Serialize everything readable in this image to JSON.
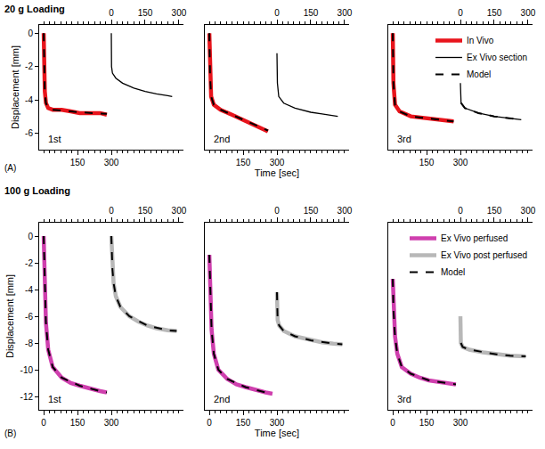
{
  "chart_data": [
    {
      "type": "line",
      "title": "20 g Loading",
      "label": "(A)",
      "xlabel": "Time [sec]",
      "ylabel": "Displacement [mm]",
      "xlim": [
        -20,
        620
      ],
      "xticks": [
        150,
        300
      ],
      "x2lim": [
        -320,
        320
      ],
      "x2ticks": [
        0,
        150,
        300
      ],
      "ylim": [
        -7,
        0.5
      ],
      "yticks": [
        0,
        -2,
        -4,
        -6
      ],
      "grid": false,
      "legend": "top right",
      "panels": [
        {
          "label": "1st",
          "series": [
            {
              "name": "In Vivo",
              "color": "#e8141c",
              "line_style": "thick",
              "axis": "x",
              "x": [
                0,
                2,
                5,
                10,
                20,
                40,
                80,
                120,
                160,
                200,
                250,
                280
              ],
              "y": [
                0,
                -2,
                -3.5,
                -4.2,
                -4.5,
                -4.6,
                -4.6,
                -4.7,
                -4.8,
                -4.8,
                -4.8,
                -4.9
              ]
            },
            {
              "name": "Ex Vivo section",
              "color": "#000000",
              "line_style": "thin",
              "axis": "x2",
              "x": [
                0,
                1,
                5,
                20,
                50,
                100,
                150,
                200,
                250,
                270
              ],
              "y": [
                0,
                -2,
                -2.4,
                -2.7,
                -3,
                -3.3,
                -3.5,
                -3.65,
                -3.75,
                -3.8
              ]
            },
            {
              "name": "Model",
              "color": "#000000",
              "line_style": "dashed",
              "axis": "x",
              "x": [
                0,
                2,
                5,
                10,
                20,
                40,
                80,
                160,
                280
              ],
              "y": [
                0,
                -2,
                -3.5,
                -4.2,
                -4.5,
                -4.6,
                -4.65,
                -4.75,
                -4.85
              ]
            }
          ]
        },
        {
          "label": "2nd",
          "series": [
            {
              "name": "In Vivo",
              "color": "#e8141c",
              "line_style": "thick",
              "axis": "x",
              "x": [
                0,
                3,
                8,
                20,
                50,
                100,
                150,
                200,
                240,
                260
              ],
              "y": [
                0,
                -2.5,
                -3.8,
                -4.3,
                -4.6,
                -4.9,
                -5.2,
                -5.5,
                -5.8,
                -5.9
              ]
            },
            {
              "name": "Ex Vivo section",
              "color": "#000000",
              "line_style": "thin",
              "axis": "x2",
              "x": [
                0,
                2,
                8,
                30,
                80,
                150,
                200,
                270
              ],
              "y": [
                -1.2,
                -3,
                -3.8,
                -4.2,
                -4.5,
                -4.75,
                -4.85,
                -5
              ]
            },
            {
              "name": "Model",
              "color": "#000000",
              "line_style": "dashed",
              "axis": "x",
              "x": [
                0,
                3,
                8,
                20,
                50,
                100,
                150,
                200,
                260
              ],
              "y": [
                0,
                -2.5,
                -3.8,
                -4.3,
                -4.6,
                -4.9,
                -5.2,
                -5.5,
                -5.85
              ]
            }
          ]
        },
        {
          "label": "3rd",
          "series": [
            {
              "name": "In Vivo",
              "color": "#e8141c",
              "line_style": "thick",
              "axis": "x",
              "x": [
                0,
                3,
                10,
                30,
                80,
                150,
                200,
                250,
                270
              ],
              "y": [
                0,
                -3,
                -4.3,
                -4.7,
                -5,
                -5.1,
                -5.2,
                -5.3,
                -5.3
              ]
            },
            {
              "name": "Ex Vivo section",
              "color": "#000000",
              "line_style": "thin",
              "axis": "x2",
              "x": [
                0,
                3,
                20,
                80,
                150,
                200,
                270
              ],
              "y": [
                -3,
                -4.2,
                -4.5,
                -4.8,
                -5,
                -5.1,
                -5.2
              ]
            },
            {
              "name": "Model",
              "color": "#000000",
              "line_style": "dashed",
              "axis": "x",
              "x": [
                0,
                3,
                10,
                30,
                80,
                150,
                270
              ],
              "y": [
                0,
                -3,
                -4.3,
                -4.7,
                -5,
                -5.1,
                -5.3
              ]
            },
            {
              "name": "Model",
              "color": "#000000",
              "line_style": "dashed",
              "axis": "x2",
              "x": [
                3,
                20,
                80,
                150,
                270
              ],
              "y": [
                -4.2,
                -4.5,
                -4.8,
                -5,
                -5.2
              ]
            }
          ]
        }
      ]
    },
    {
      "type": "line",
      "title": "100 g Loading",
      "label": "(B)",
      "xlabel": "Time [sec]",
      "ylabel": "Displacement [mm]",
      "xlim": [
        -20,
        620
      ],
      "xticks": [
        0,
        150,
        300
      ],
      "x2lim": [
        -320,
        320
      ],
      "x2ticks": [
        0,
        150,
        300
      ],
      "ylim": [
        -13,
        1
      ],
      "yticks": [
        0,
        -2,
        -4,
        -6,
        -8,
        -10,
        -12
      ],
      "grid": false,
      "legend": "top right",
      "panels": [
        {
          "label": "1st",
          "series": [
            {
              "name": "Ex Vivo perfused",
              "color": "#cf3fae",
              "line_style": "thick",
              "axis": "x",
              "x": [
                0,
                5,
                10,
                20,
                40,
                80,
                120,
                160,
                200,
                250,
                280
              ],
              "y": [
                0,
                -4,
                -6.5,
                -8.5,
                -9.8,
                -10.6,
                -11,
                -11.2,
                -11.4,
                -11.6,
                -11.7
              ]
            },
            {
              "name": "Ex Vivo post perfused",
              "color": "#b8b8b8",
              "line_style": "thick",
              "axis": "x2",
              "x": [
                0,
                5,
                10,
                20,
                40,
                80,
                120,
                160,
                200,
                250,
                290
              ],
              "y": [
                0,
                -2.5,
                -3.5,
                -4.5,
                -5.3,
                -6,
                -6.4,
                -6.7,
                -6.9,
                -7.05,
                -7.1
              ]
            },
            {
              "name": "Model",
              "color": "#000000",
              "line_style": "dashed",
              "axis": "x",
              "x": [
                0,
                5,
                10,
                20,
                40,
                80,
                160,
                250,
                280
              ],
              "y": [
                0,
                -4,
                -6.5,
                -8.5,
                -9.8,
                -10.6,
                -11.2,
                -11.6,
                -11.7
              ]
            },
            {
              "name": "Model",
              "color": "#000000",
              "line_style": "dashed",
              "axis": "x2",
              "x": [
                0,
                5,
                10,
                20,
                40,
                80,
                160,
                250,
                290
              ],
              "y": [
                0,
                -2.5,
                -3.5,
                -4.5,
                -5.3,
                -6,
                -6.7,
                -7.05,
                -7.1
              ]
            }
          ]
        },
        {
          "label": "2nd",
          "series": [
            {
              "name": "Ex Vivo perfused",
              "color": "#cf3fae",
              "line_style": "thick",
              "axis": "x",
              "x": [
                0,
                5,
                10,
                20,
                40,
                80,
                120,
                160,
                200,
                250,
                280
              ],
              "y": [
                -1.4,
                -5,
                -7,
                -8.8,
                -10,
                -10.7,
                -11.1,
                -11.3,
                -11.5,
                -11.7,
                -11.8
              ]
            },
            {
              "name": "Ex Vivo post perfused",
              "color": "#b8b8b8",
              "line_style": "thick",
              "axis": "x2",
              "x": [
                0,
                3,
                10,
                30,
                80,
                150,
                200,
                250,
                290
              ],
              "y": [
                -4.2,
                -6.3,
                -6.7,
                -7.1,
                -7.5,
                -7.8,
                -7.95,
                -8.05,
                -8.1
              ]
            },
            {
              "name": "Model",
              "color": "#000000",
              "line_style": "dashed",
              "axis": "x",
              "x": [
                0,
                5,
                10,
                20,
                40,
                80,
                160,
                250,
                280
              ],
              "y": [
                -1.4,
                -5,
                -7,
                -8.8,
                -10,
                -10.7,
                -11.3,
                -11.7,
                -11.8
              ]
            },
            {
              "name": "Model",
              "color": "#000000",
              "line_style": "dashed",
              "axis": "x2",
              "x": [
                0,
                3,
                10,
                30,
                80,
                150,
                250,
                290
              ],
              "y": [
                -4.2,
                -6.3,
                -6.7,
                -7.1,
                -7.5,
                -7.8,
                -8.05,
                -8.1
              ]
            }
          ]
        },
        {
          "label": "3rd",
          "series": [
            {
              "name": "Ex Vivo perfused",
              "color": "#cf3fae",
              "line_style": "thick",
              "axis": "x",
              "x": [
                0,
                3,
                10,
                20,
                40,
                80,
                120,
                160,
                200,
                250,
                280
              ],
              "y": [
                -3.2,
                -5.5,
                -7.5,
                -8.8,
                -9.8,
                -10.3,
                -10.6,
                -10.8,
                -10.9,
                -11,
                -11.1
              ]
            },
            {
              "name": "Ex Vivo post perfused",
              "color": "#b8b8b8",
              "line_style": "thick",
              "axis": "x2",
              "x": [
                0,
                2,
                10,
                40,
                100,
                160,
                220,
                290
              ],
              "y": [
                -6,
                -8,
                -8.3,
                -8.5,
                -8.7,
                -8.85,
                -8.95,
                -9
              ]
            },
            {
              "name": "Model",
              "color": "#000000",
              "line_style": "dashed",
              "axis": "x",
              "x": [
                0,
                3,
                10,
                20,
                40,
                80,
                160,
                250,
                280
              ],
              "y": [
                -3.2,
                -5.5,
                -7.5,
                -8.8,
                -9.8,
                -10.3,
                -10.8,
                -11,
                -11.1
              ]
            },
            {
              "name": "Model",
              "color": "#000000",
              "line_style": "dashed",
              "axis": "x2",
              "x": [
                2,
                10,
                40,
                100,
                160,
                220,
                290
              ],
              "y": [
                -8,
                -8.3,
                -8.5,
                -8.7,
                -8.85,
                -8.95,
                -9
              ]
            }
          ]
        }
      ]
    }
  ]
}
